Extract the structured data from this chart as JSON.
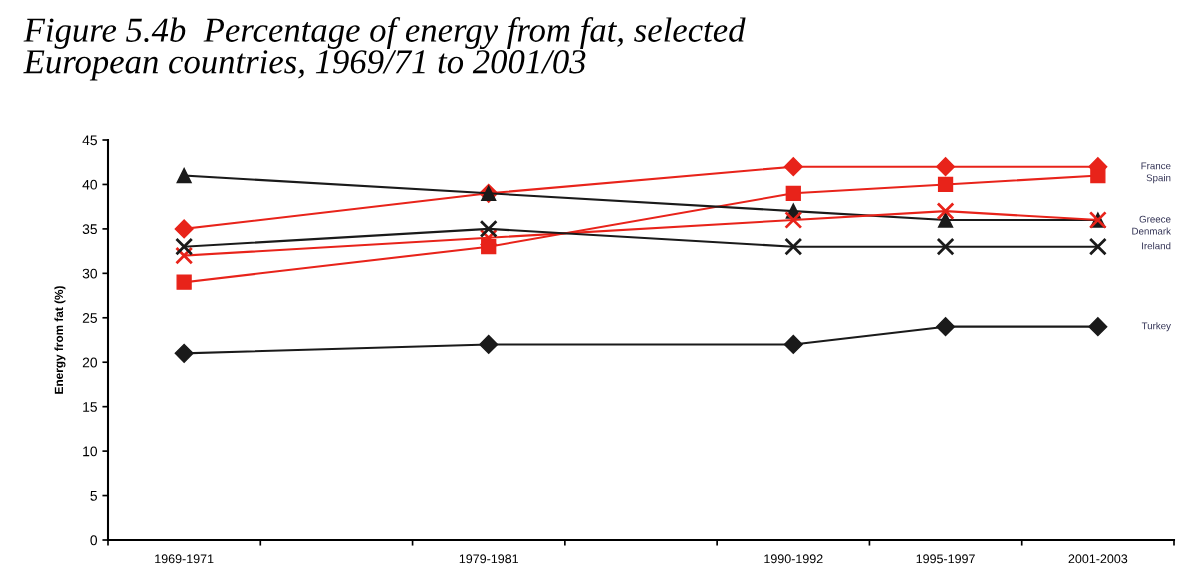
{
  "chart_data": {
    "type": "line",
    "title": "Figure 5.4b  Percentage of energy from fat, selected\nEuropean countries, 1969/71 to 2001/03",
    "ylabel": "Energy from fat (%)",
    "categories": [
      "1969-1971",
      null,
      "1979-1981",
      null,
      "1990-1992",
      "1995-1997",
      "2001-2003"
    ],
    "ylim": [
      0,
      45
    ],
    "yticks": [
      0,
      5,
      10,
      15,
      20,
      25,
      30,
      35,
      40,
      45
    ],
    "grid": false,
    "legend": false,
    "series": [
      {
        "name": "France",
        "color": "#e8231a",
        "marker": "diamond",
        "values": [
          35,
          null,
          39,
          null,
          42,
          42,
          42
        ]
      },
      {
        "name": "Spain",
        "color": "#e8231a",
        "marker": "square",
        "values": [
          29,
          null,
          33,
          null,
          39,
          40,
          41
        ]
      },
      {
        "name": "Greece",
        "color": "#1a1a1a",
        "marker": "triangle",
        "values": [
          41,
          null,
          39,
          null,
          37,
          36,
          36
        ]
      },
      {
        "name": "Denmark",
        "color": "#e8231a",
        "marker": "cross",
        "values": [
          32,
          null,
          34,
          null,
          36,
          37,
          36
        ]
      },
      {
        "name": "Ireland",
        "color": "#1a1a1a",
        "marker": "cross",
        "values": [
          33,
          null,
          35,
          null,
          33,
          33,
          33
        ]
      },
      {
        "name": "Turkey",
        "color": "#1a1a1a",
        "marker": "diamond",
        "values": [
          21,
          null,
          22,
          null,
          22,
          24,
          24
        ]
      }
    ]
  }
}
